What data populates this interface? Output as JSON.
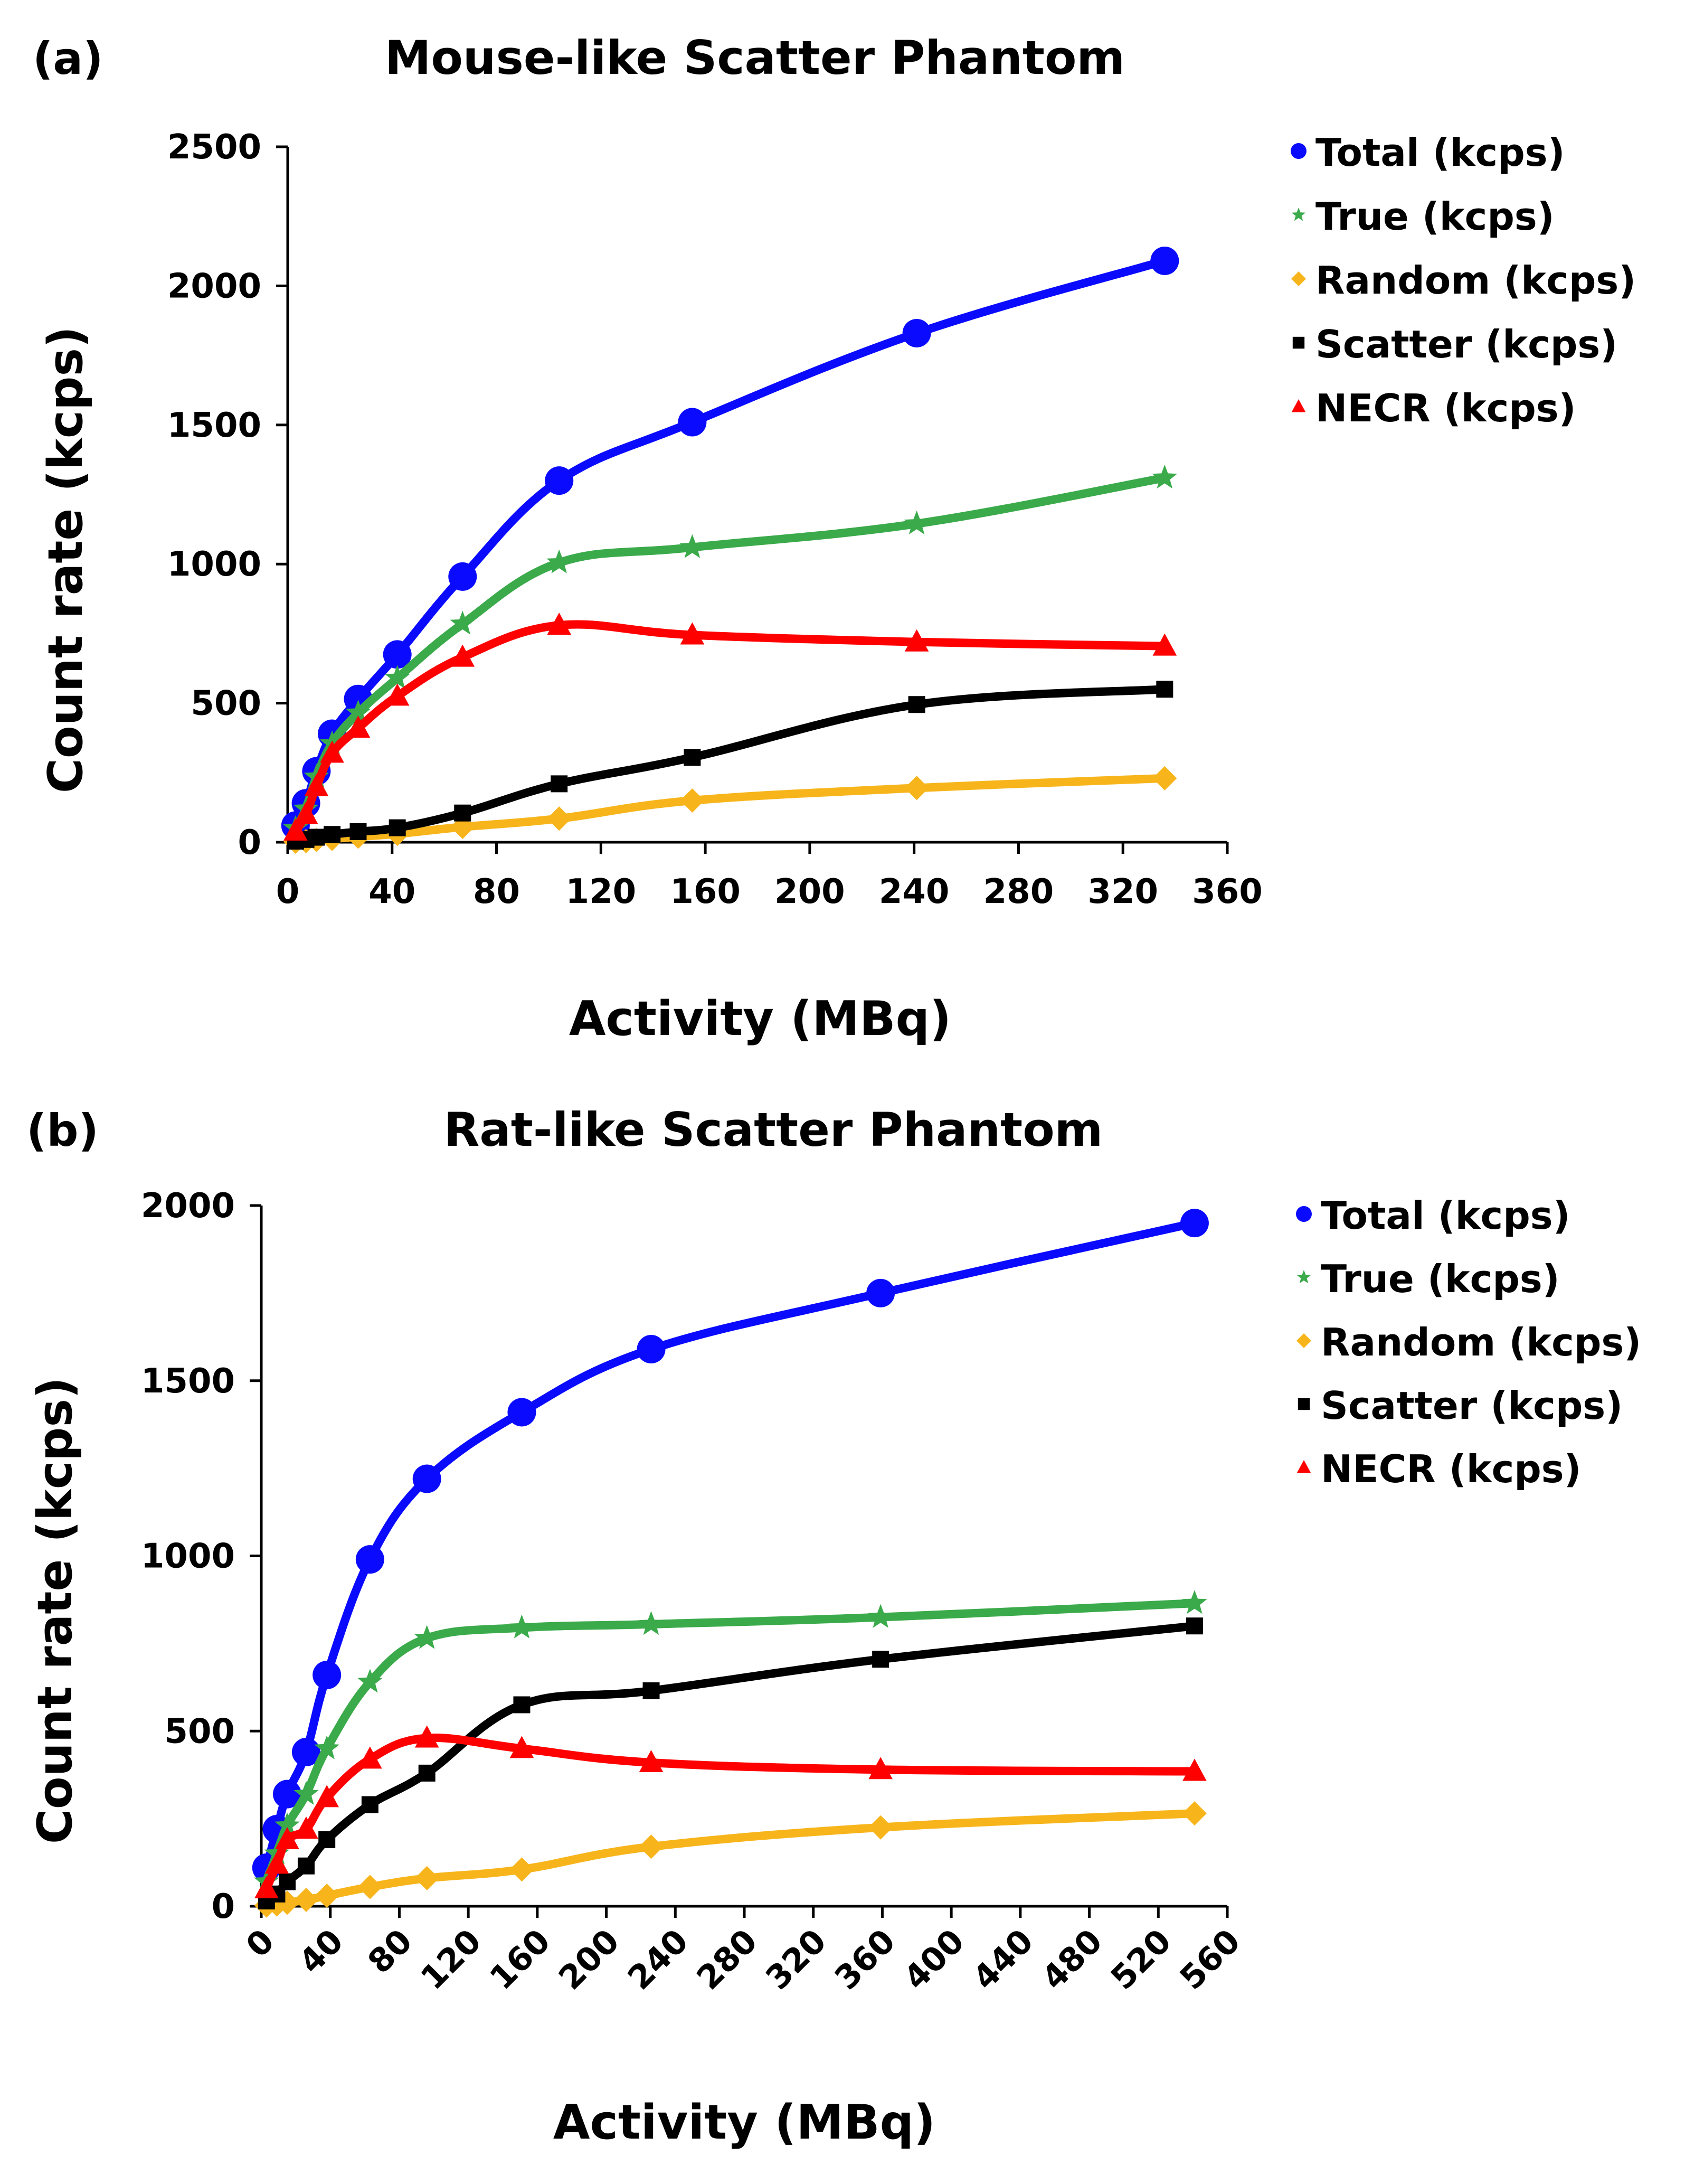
{
  "chart_data": [
    {
      "panel_label": "(a)",
      "type": "line",
      "title": "Mouse-like Scatter Phantom",
      "xlabel": "Activity (MBq)",
      "ylabel": "Count rate (kcps)",
      "xlim": [
        0,
        360
      ],
      "ylim": [
        0,
        2500
      ],
      "x_ticks": [
        "0",
        "40",
        "80",
        "120",
        "160",
        "200",
        "240",
        "280",
        "320",
        "360"
      ],
      "y_ticks": [
        "0",
        "500",
        "1000",
        "1500",
        "2000",
        "2500"
      ],
      "x_tick_values": [
        0,
        40,
        80,
        120,
        160,
        200,
        240,
        280,
        320,
        360
      ],
      "y_tick_values": [
        0,
        500,
        1000,
        1500,
        2000,
        2500
      ],
      "grid": false,
      "legend_position": "right",
      "series": [
        {
          "name": "Total (kcps)",
          "color": "#0a0aff",
          "marker": "circle",
          "x": [
            3,
            7,
            11,
            17,
            27,
            42,
            67,
            104,
            155,
            241,
            336
          ],
          "y": [
            60,
            140,
            255,
            390,
            515,
            675,
            955,
            1300,
            1510,
            1830,
            2090
          ]
        },
        {
          "name": "True (kcps)",
          "color": "#3aaa4a",
          "marker": "star",
          "x": [
            3,
            7,
            11,
            17,
            27,
            42,
            67,
            104,
            155,
            241,
            336
          ],
          "y": [
            50,
            120,
            235,
            355,
            465,
            590,
            785,
            1005,
            1060,
            1145,
            1310
          ]
        },
        {
          "name": "Random (kcps)",
          "color": "#f7b51b",
          "marker": "diamond",
          "x": [
            3,
            7,
            11,
            17,
            27,
            42,
            67,
            104,
            155,
            241,
            336
          ],
          "y": [
            2,
            4,
            8,
            12,
            20,
            30,
            55,
            85,
            150,
            195,
            230
          ]
        },
        {
          "name": "Scatter (kcps)",
          "color": "#000000",
          "marker": "square",
          "x": [
            3,
            7,
            11,
            17,
            27,
            42,
            67,
            104,
            155,
            241,
            336
          ],
          "y": [
            4,
            10,
            18,
            28,
            38,
            52,
            105,
            210,
            305,
            495,
            550
          ]
        },
        {
          "name": "NECR (kcps)",
          "color": "#ff0000",
          "marker": "triangle",
          "x": [
            3,
            7,
            11,
            17,
            27,
            42,
            67,
            104,
            155,
            241,
            336
          ],
          "y": [
            40,
            100,
            200,
            320,
            410,
            525,
            665,
            780,
            745,
            720,
            705
          ]
        }
      ]
    },
    {
      "panel_label": "(b)",
      "type": "line",
      "title": "Rat-like Scatter Phantom",
      "xlabel": "Activity (MBq)",
      "ylabel": "Count rate (kcps)",
      "xlim": [
        0,
        560
      ],
      "ylim": [
        0,
        2000
      ],
      "x_ticks": [
        "0",
        "40",
        "80",
        "120",
        "160",
        "200",
        "240",
        "280",
        "320",
        "360",
        "400",
        "440",
        "480",
        "520",
        "560"
      ],
      "y_ticks": [
        "0",
        "500",
        "1000",
        "1500",
        "2000"
      ],
      "x_tick_values": [
        0,
        40,
        80,
        120,
        160,
        200,
        240,
        280,
        320,
        360,
        400,
        440,
        480,
        520,
        560
      ],
      "y_tick_values": [
        0,
        500,
        1000,
        1500,
        2000
      ],
      "grid": false,
      "legend_position": "right",
      "series": [
        {
          "name": "Total (kcps)",
          "color": "#0a0aff",
          "marker": "circle",
          "x": [
            3,
            9,
            15,
            26,
            38,
            63,
            96,
            151,
            226,
            359,
            541
          ],
          "y": [
            110,
            220,
            320,
            440,
            660,
            990,
            1220,
            1410,
            1590,
            1750,
            1950
          ]
        },
        {
          "name": "True (kcps)",
          "color": "#3aaa4a",
          "marker": "star",
          "x": [
            3,
            9,
            15,
            26,
            38,
            63,
            96,
            151,
            226,
            359,
            541
          ],
          "y": [
            70,
            150,
            230,
            320,
            450,
            640,
            765,
            795,
            805,
            825,
            865
          ]
        },
        {
          "name": "Random (kcps)",
          "color": "#f7b51b",
          "marker": "diamond",
          "x": [
            3,
            9,
            15,
            26,
            38,
            63,
            96,
            151,
            226,
            359,
            541
          ],
          "y": [
            2,
            5,
            10,
            18,
            30,
            55,
            80,
            105,
            170,
            225,
            265
          ]
        },
        {
          "name": "Scatter (kcps)",
          "color": "#000000",
          "marker": "square",
          "x": [
            3,
            9,
            15,
            26,
            38,
            63,
            96,
            151,
            226,
            359,
            541
          ],
          "y": [
            15,
            35,
            70,
            115,
            190,
            290,
            380,
            575,
            615,
            705,
            800
          ]
        },
        {
          "name": "NECR (kcps)",
          "color": "#ff0000",
          "marker": "triangle",
          "x": [
            3,
            9,
            15,
            26,
            38,
            63,
            96,
            151,
            226,
            359,
            541
          ],
          "y": [
            50,
            120,
            190,
            220,
            310,
            420,
            480,
            450,
            410,
            390,
            385
          ]
        }
      ]
    }
  ]
}
